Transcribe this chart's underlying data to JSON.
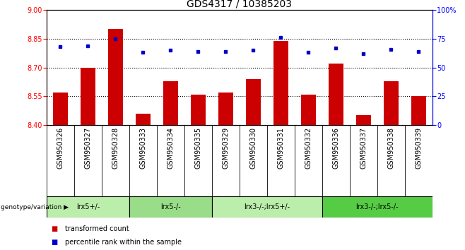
{
  "title": "GDS4317 / 10385203",
  "samples": [
    "GSM950326",
    "GSM950327",
    "GSM950328",
    "GSM950333",
    "GSM950334",
    "GSM950335",
    "GSM950329",
    "GSM950330",
    "GSM950331",
    "GSM950332",
    "GSM950336",
    "GSM950337",
    "GSM950338",
    "GSM950339"
  ],
  "bar_values": [
    8.57,
    8.7,
    8.9,
    8.46,
    8.63,
    8.56,
    8.57,
    8.64,
    8.84,
    8.56,
    8.72,
    8.45,
    8.63,
    8.55
  ],
  "dot_values": [
    68,
    69,
    75,
    63,
    65,
    64,
    64,
    65,
    76,
    63,
    67,
    62,
    66,
    64
  ],
  "ymin": 8.4,
  "ymax": 9.0,
  "yticks": [
    8.4,
    8.55,
    8.7,
    8.85,
    9.0
  ],
  "y2min": 0,
  "y2max": 100,
  "y2ticks": [
    0,
    25,
    50,
    75,
    100
  ],
  "groups": [
    {
      "label": "lrx5+/-",
      "start": 0,
      "end": 3,
      "color": "#bbeeaa"
    },
    {
      "label": "lrx5-/-",
      "start": 3,
      "end": 6,
      "color": "#99dd88"
    },
    {
      "label": "lrx3-/-;lrx5+/-",
      "start": 6,
      "end": 10,
      "color": "#bbeeaa"
    },
    {
      "label": "lrx3-/-;lrx5-/-",
      "start": 10,
      "end": 14,
      "color": "#55cc44"
    }
  ],
  "bar_color": "#cc0000",
  "dot_color": "#0000cc",
  "bar_width": 0.55,
  "title_fontsize": 10,
  "tick_fontsize": 7,
  "label_fontsize": 7,
  "genotype_label": "genotype/variation",
  "legend_items": [
    "transformed count",
    "percentile rank within the sample"
  ],
  "grid_dotted_vals": [
    8.55,
    8.7,
    8.85
  ]
}
